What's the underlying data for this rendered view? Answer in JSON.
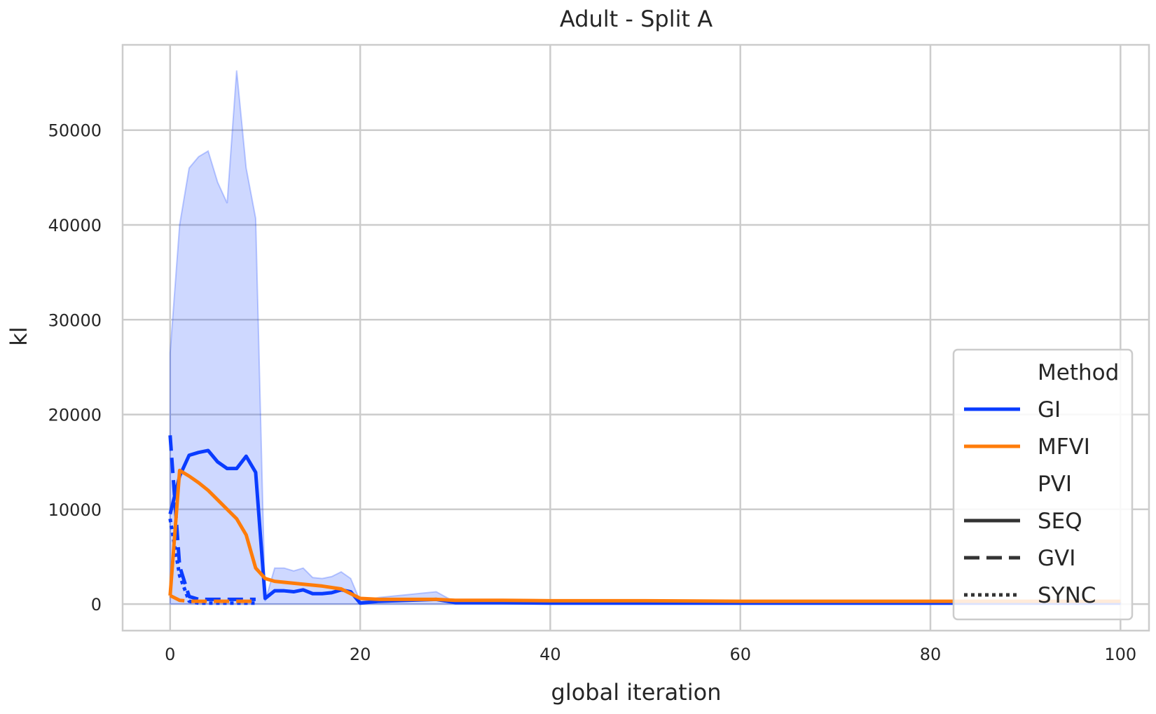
{
  "chart_data": {
    "type": "line",
    "title": "Adult - Split A",
    "xlabel": "global iteration",
    "ylabel": "kl",
    "xlim": [
      -5,
      103
    ],
    "ylim": [
      -2800,
      59000
    ],
    "xticks": [
      0,
      20,
      40,
      60,
      80,
      100
    ],
    "yticks": [
      0,
      10000,
      20000,
      30000,
      40000,
      50000
    ],
    "grid": true,
    "legend": {
      "placement": "bottom-right",
      "entries": [
        {
          "label": "Method",
          "kind": "header"
        },
        {
          "label": "GI",
          "kind": "color",
          "color": "#0a3cff"
        },
        {
          "label": "MFVI",
          "kind": "color",
          "color": "#ff7c0a"
        },
        {
          "label": "PVI",
          "kind": "header"
        },
        {
          "label": "SEQ",
          "kind": "style",
          "dash": "solid"
        },
        {
          "label": "GVI",
          "kind": "style",
          "dash": "dashed"
        },
        {
          "label": "SYNC",
          "kind": "style",
          "dash": "dotted"
        }
      ]
    },
    "series": [
      {
        "method": "GI",
        "pvi": "SEQ",
        "color": "#0a3cff",
        "dash": "solid",
        "x": [
          0,
          1,
          2,
          3,
          4,
          5,
          6,
          7,
          8,
          9,
          10,
          11,
          12,
          13,
          14,
          15,
          16,
          17,
          18,
          19,
          20,
          22,
          25,
          28,
          30,
          35,
          40,
          50,
          60,
          70,
          80,
          90,
          100
        ],
        "y": [
          9500,
          13500,
          15700,
          16000,
          16200,
          15000,
          14300,
          14300,
          15600,
          13900,
          600,
          1400,
          1400,
          1300,
          1500,
          1100,
          1100,
          1200,
          1500,
          1300,
          100,
          300,
          400,
          500,
          150,
          150,
          100,
          100,
          100,
          100,
          100,
          100,
          100
        ],
        "band_upper": [
          26500,
          40000,
          46000,
          47200,
          47800,
          44500,
          42300,
          56300,
          46000,
          40700,
          300,
          3800,
          3800,
          3500,
          3800,
          2800,
          2700,
          2900,
          3400,
          2700,
          300,
          700,
          1000,
          1300,
          200,
          200,
          150,
          150,
          150,
          150,
          150,
          150,
          150
        ],
        "band_lower": [
          0,
          0,
          0,
          0,
          0,
          0,
          0,
          0,
          0,
          0,
          0,
          0,
          0,
          0,
          0,
          0,
          0,
          0,
          0,
          0,
          0,
          0,
          0,
          0,
          0,
          0,
          0,
          0,
          0,
          0,
          0,
          0,
          0
        ]
      },
      {
        "method": "GI",
        "pvi": "GVI",
        "color": "#0a3cff",
        "dash": "dashed",
        "x": [
          0,
          1,
          2,
          3,
          4,
          5,
          6,
          7,
          8,
          9
        ],
        "y": [
          17800,
          4000,
          800,
          500,
          500,
          500,
          500,
          500,
          500,
          500
        ]
      },
      {
        "method": "GI",
        "pvi": "SYNC",
        "color": "#0a3cff",
        "dash": "dotted",
        "x": [
          0,
          1,
          2,
          3,
          4,
          5,
          6,
          7,
          8,
          9
        ],
        "y": [
          9000,
          3000,
          300,
          100,
          100,
          100,
          100,
          100,
          100,
          100
        ]
      },
      {
        "method": "MFVI",
        "pvi": "SEQ",
        "color": "#ff7c0a",
        "dash": "solid",
        "x": [
          0,
          1,
          2,
          3,
          4,
          5,
          6,
          7,
          8,
          9,
          10,
          11,
          12,
          14,
          16,
          18,
          20,
          22,
          25,
          28,
          30,
          35,
          40,
          50,
          60,
          70,
          80,
          90,
          100
        ],
        "y": [
          900,
          14100,
          13500,
          12800,
          12000,
          11000,
          10000,
          9000,
          7300,
          3800,
          2700,
          2400,
          2300,
          2100,
          1900,
          1600,
          600,
          500,
          500,
          500,
          400,
          400,
          350,
          350,
          300,
          300,
          300,
          300,
          300
        ]
      },
      {
        "method": "MFVI",
        "pvi": "GVI",
        "color": "#ff7c0a",
        "dash": "dashed",
        "x": [
          0,
          1,
          2,
          3,
          4,
          5,
          6,
          7,
          8,
          9
        ],
        "y": [
          900,
          400,
          300,
          300,
          300,
          300,
          300,
          300,
          300,
          300
        ]
      }
    ]
  }
}
